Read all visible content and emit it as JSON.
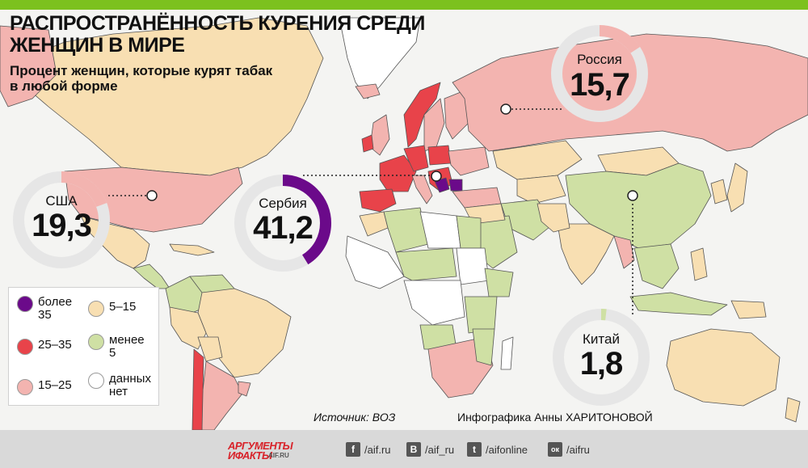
{
  "title": "РАСПРОСТРАНЁННОСТЬ КУРЕНИЯ СРЕДИ ЖЕНЩИН В МИРЕ",
  "subtitle": "Процент женщин, которые курят табак в любой форме",
  "colors": {
    "more_35": "#6b0a8a",
    "25_35": "#e8434a",
    "15_25": "#f3b4b0",
    "5_15": "#f8dfb2",
    "less_5": "#cfe0a4",
    "no_data": "#ffffff",
    "accent_green": "#7cc11e"
  },
  "callouts": {
    "russia": {
      "label": "Россия",
      "value": "15,7",
      "percent": 15.7
    },
    "usa": {
      "label": "США",
      "value": "19,3",
      "percent": 19.3
    },
    "serbia": {
      "label": "Сербия",
      "value": "41,2",
      "percent": 41.2
    },
    "china": {
      "label": "Китай",
      "value": "1,8",
      "percent": 1.8
    }
  },
  "legend": [
    {
      "label": "более 35",
      "color_key": "more_35"
    },
    {
      "label": "5–15",
      "color_key": "5_15"
    },
    {
      "label": "25–35",
      "color_key": "25_35"
    },
    {
      "label": "менее 5",
      "color_key": "less_5"
    },
    {
      "label": "15–25",
      "color_key": "15_25"
    },
    {
      "label": "данных нет",
      "color_key": "no_data"
    }
  ],
  "source": "Источник: ВОЗ",
  "credit": "Инфографика Анны ХАРИТОНОВОЙ",
  "footer": {
    "logo_line1": "АРГУМЕНТЫ",
    "logo_line2": "ИФАКТЫ",
    "logo_site": "AIF.RU",
    "social": [
      {
        "icon": "facebook-icon",
        "glyph": "f",
        "text": "/aif.ru"
      },
      {
        "icon": "vk-icon",
        "glyph": "B",
        "text": "/aif_ru"
      },
      {
        "icon": "twitter-icon",
        "glyph": "t",
        "text": "/aifonline"
      },
      {
        "icon": "odnoklassniki-icon",
        "glyph": "ок",
        "text": "/aifru"
      }
    ]
  }
}
